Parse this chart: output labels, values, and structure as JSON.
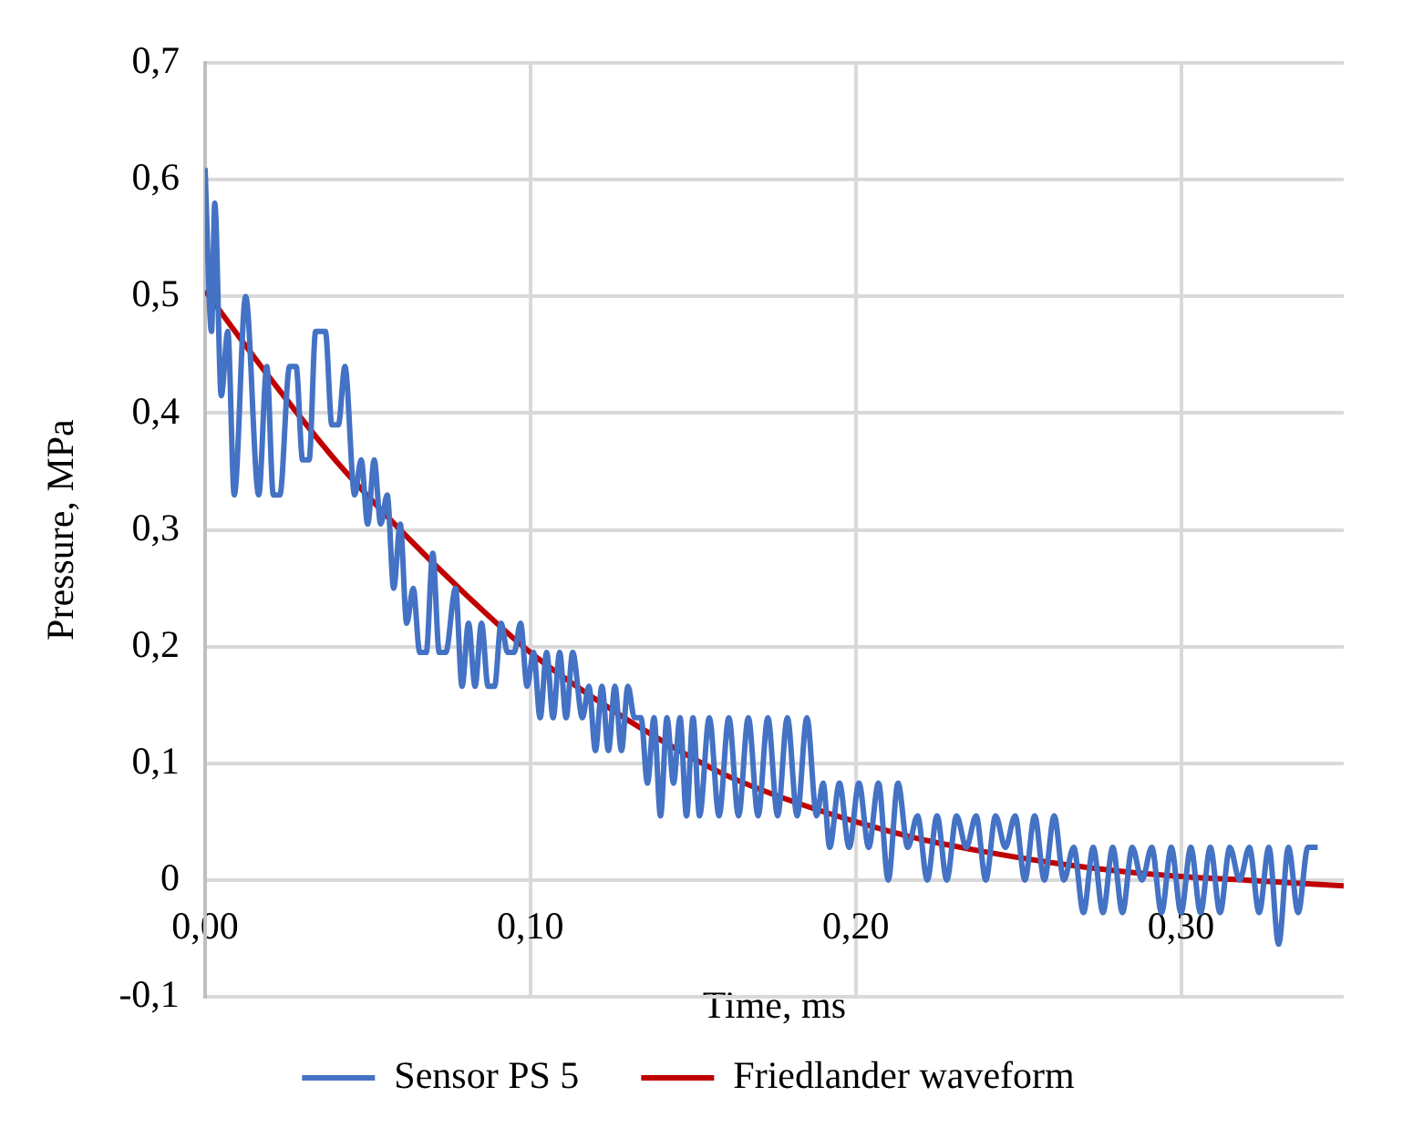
{
  "chart_data": {
    "type": "line",
    "xlabel": "Time, ms",
    "ylabel": "Pressure, MPa",
    "xlim": [
      0,
      0.35
    ],
    "xticks": [
      {
        "value": 0,
        "label": "0,00"
      },
      {
        "value": 0.1,
        "label": "0,10"
      },
      {
        "value": 0.2,
        "label": "0,20"
      },
      {
        "value": 0.3,
        "label": "0,30"
      }
    ],
    "ylim": [
      -0.1,
      0.7
    ],
    "yticks": [
      {
        "value": -0.1,
        "label": "-0,1"
      },
      {
        "value": 0,
        "label": "0"
      },
      {
        "value": 0.1,
        "label": "0,1"
      },
      {
        "value": 0.2,
        "label": "0,2"
      },
      {
        "value": 0.3,
        "label": "0,3"
      },
      {
        "value": 0.4,
        "label": "0,4"
      },
      {
        "value": 0.5,
        "label": "0,5"
      },
      {
        "value": 0.6,
        "label": "0,6"
      },
      {
        "value": 0.7,
        "label": "0,7"
      }
    ],
    "grid": true,
    "legend": "bottom",
    "marker": "none",
    "line_style": "solid",
    "series": [
      {
        "name": "Sensor PS 5",
        "color": "#4472c4",
        "x": [
          0,
          0.002,
          0.003,
          0.005,
          0.007,
          0.009,
          0.0125,
          0.0165,
          0.019,
          0.021,
          0.023,
          0.026,
          0.028,
          0.03,
          0.032,
          0.034,
          0.037,
          0.039,
          0.041,
          0.043,
          0.046,
          0.048,
          0.05,
          0.052,
          0.054,
          0.056,
          0.058,
          0.06,
          0.062,
          0.064,
          0.066,
          0.068,
          0.07,
          0.072,
          0.074,
          0.077,
          0.079,
          0.081,
          0.083,
          0.085,
          0.087,
          0.089,
          0.091,
          0.093,
          0.095,
          0.097,
          0.099,
          0.101,
          0.103,
          0.105,
          0.107,
          0.109,
          0.111,
          0.113,
          0.116,
          0.118,
          0.12,
          0.122,
          0.124,
          0.126,
          0.128,
          0.13,
          0.132,
          0.134,
          0.136,
          0.138,
          0.14,
          0.142,
          0.144,
          0.146,
          0.148,
          0.15,
          0.152,
          0.155,
          0.158,
          0.161,
          0.164,
          0.167,
          0.17,
          0.173,
          0.176,
          0.179,
          0.182,
          0.185,
          0.188,
          0.19,
          0.192,
          0.195,
          0.198,
          0.201,
          0.204,
          0.207,
          0.21,
          0.213,
          0.216,
          0.219,
          0.222,
          0.225,
          0.228,
          0.231,
          0.234,
          0.237,
          0.24,
          0.243,
          0.246,
          0.249,
          0.252,
          0.255,
          0.258,
          0.261,
          0.264,
          0.267,
          0.27,
          0.273,
          0.276,
          0.279,
          0.282,
          0.285,
          0.288,
          0.291,
          0.294,
          0.297,
          0.3,
          0.303,
          0.306,
          0.309,
          0.312,
          0.315,
          0.318,
          0.321,
          0.324,
          0.327,
          0.33,
          0.333,
          0.336,
          0.339,
          0.342
        ],
        "values": [
          0.61,
          0.47,
          0.58,
          0.415,
          0.47,
          0.33,
          0.5,
          0.33,
          0.44,
          0.33,
          0.33,
          0.44,
          0.44,
          0.36,
          0.36,
          0.47,
          0.47,
          0.39,
          0.39,
          0.44,
          0.33,
          0.36,
          0.305,
          0.36,
          0.305,
          0.33,
          0.25,
          0.305,
          0.22,
          0.25,
          0.195,
          0.195,
          0.28,
          0.195,
          0.195,
          0.25,
          0.166,
          0.22,
          0.166,
          0.22,
          0.166,
          0.166,
          0.22,
          0.195,
          0.195,
          0.22,
          0.166,
          0.195,
          0.139,
          0.195,
          0.139,
          0.195,
          0.139,
          0.195,
          0.139,
          0.166,
          0.111,
          0.166,
          0.111,
          0.166,
          0.111,
          0.166,
          0.139,
          0.139,
          0.083,
          0.139,
          0.055,
          0.139,
          0.083,
          0.139,
          0.055,
          0.139,
          0.055,
          0.139,
          0.055,
          0.139,
          0.055,
          0.139,
          0.055,
          0.139,
          0.055,
          0.139,
          0.055,
          0.139,
          0.055,
          0.083,
          0.028,
          0.083,
          0.028,
          0.083,
          0.028,
          0.083,
          0,
          0.083,
          0.028,
          0.055,
          0,
          0.055,
          0,
          0.055,
          0.028,
          0.055,
          0,
          0.055,
          0.028,
          0.055,
          0,
          0.055,
          0,
          0.055,
          0,
          0.028,
          -0.028,
          0.028,
          -0.028,
          0.028,
          -0.028,
          0.028,
          0,
          0.028,
          -0.028,
          0.028,
          -0.028,
          0.028,
          -0.028,
          0.028,
          -0.028,
          0.028,
          0,
          0.028,
          -0.028,
          0.028,
          -0.055,
          0.028,
          -0.028,
          0.028,
          0.028
        ]
      },
      {
        "name": "Friedlander waveform",
        "color": "#c00000",
        "x": [
          0,
          0.02,
          0.04,
          0.06,
          0.08,
          0.1,
          0.12,
          0.14,
          0.16,
          0.18,
          0.2,
          0.22,
          0.24,
          0.26,
          0.28,
          0.3,
          0.32,
          0.35
        ],
        "values": [
          0.505,
          0.43,
          0.36,
          0.3,
          0.245,
          0.195,
          0.155,
          0.12,
          0.09,
          0.068,
          0.05,
          0.035,
          0.024,
          0.015,
          0.008,
          0.003,
          0,
          -0.005
        ]
      }
    ]
  }
}
